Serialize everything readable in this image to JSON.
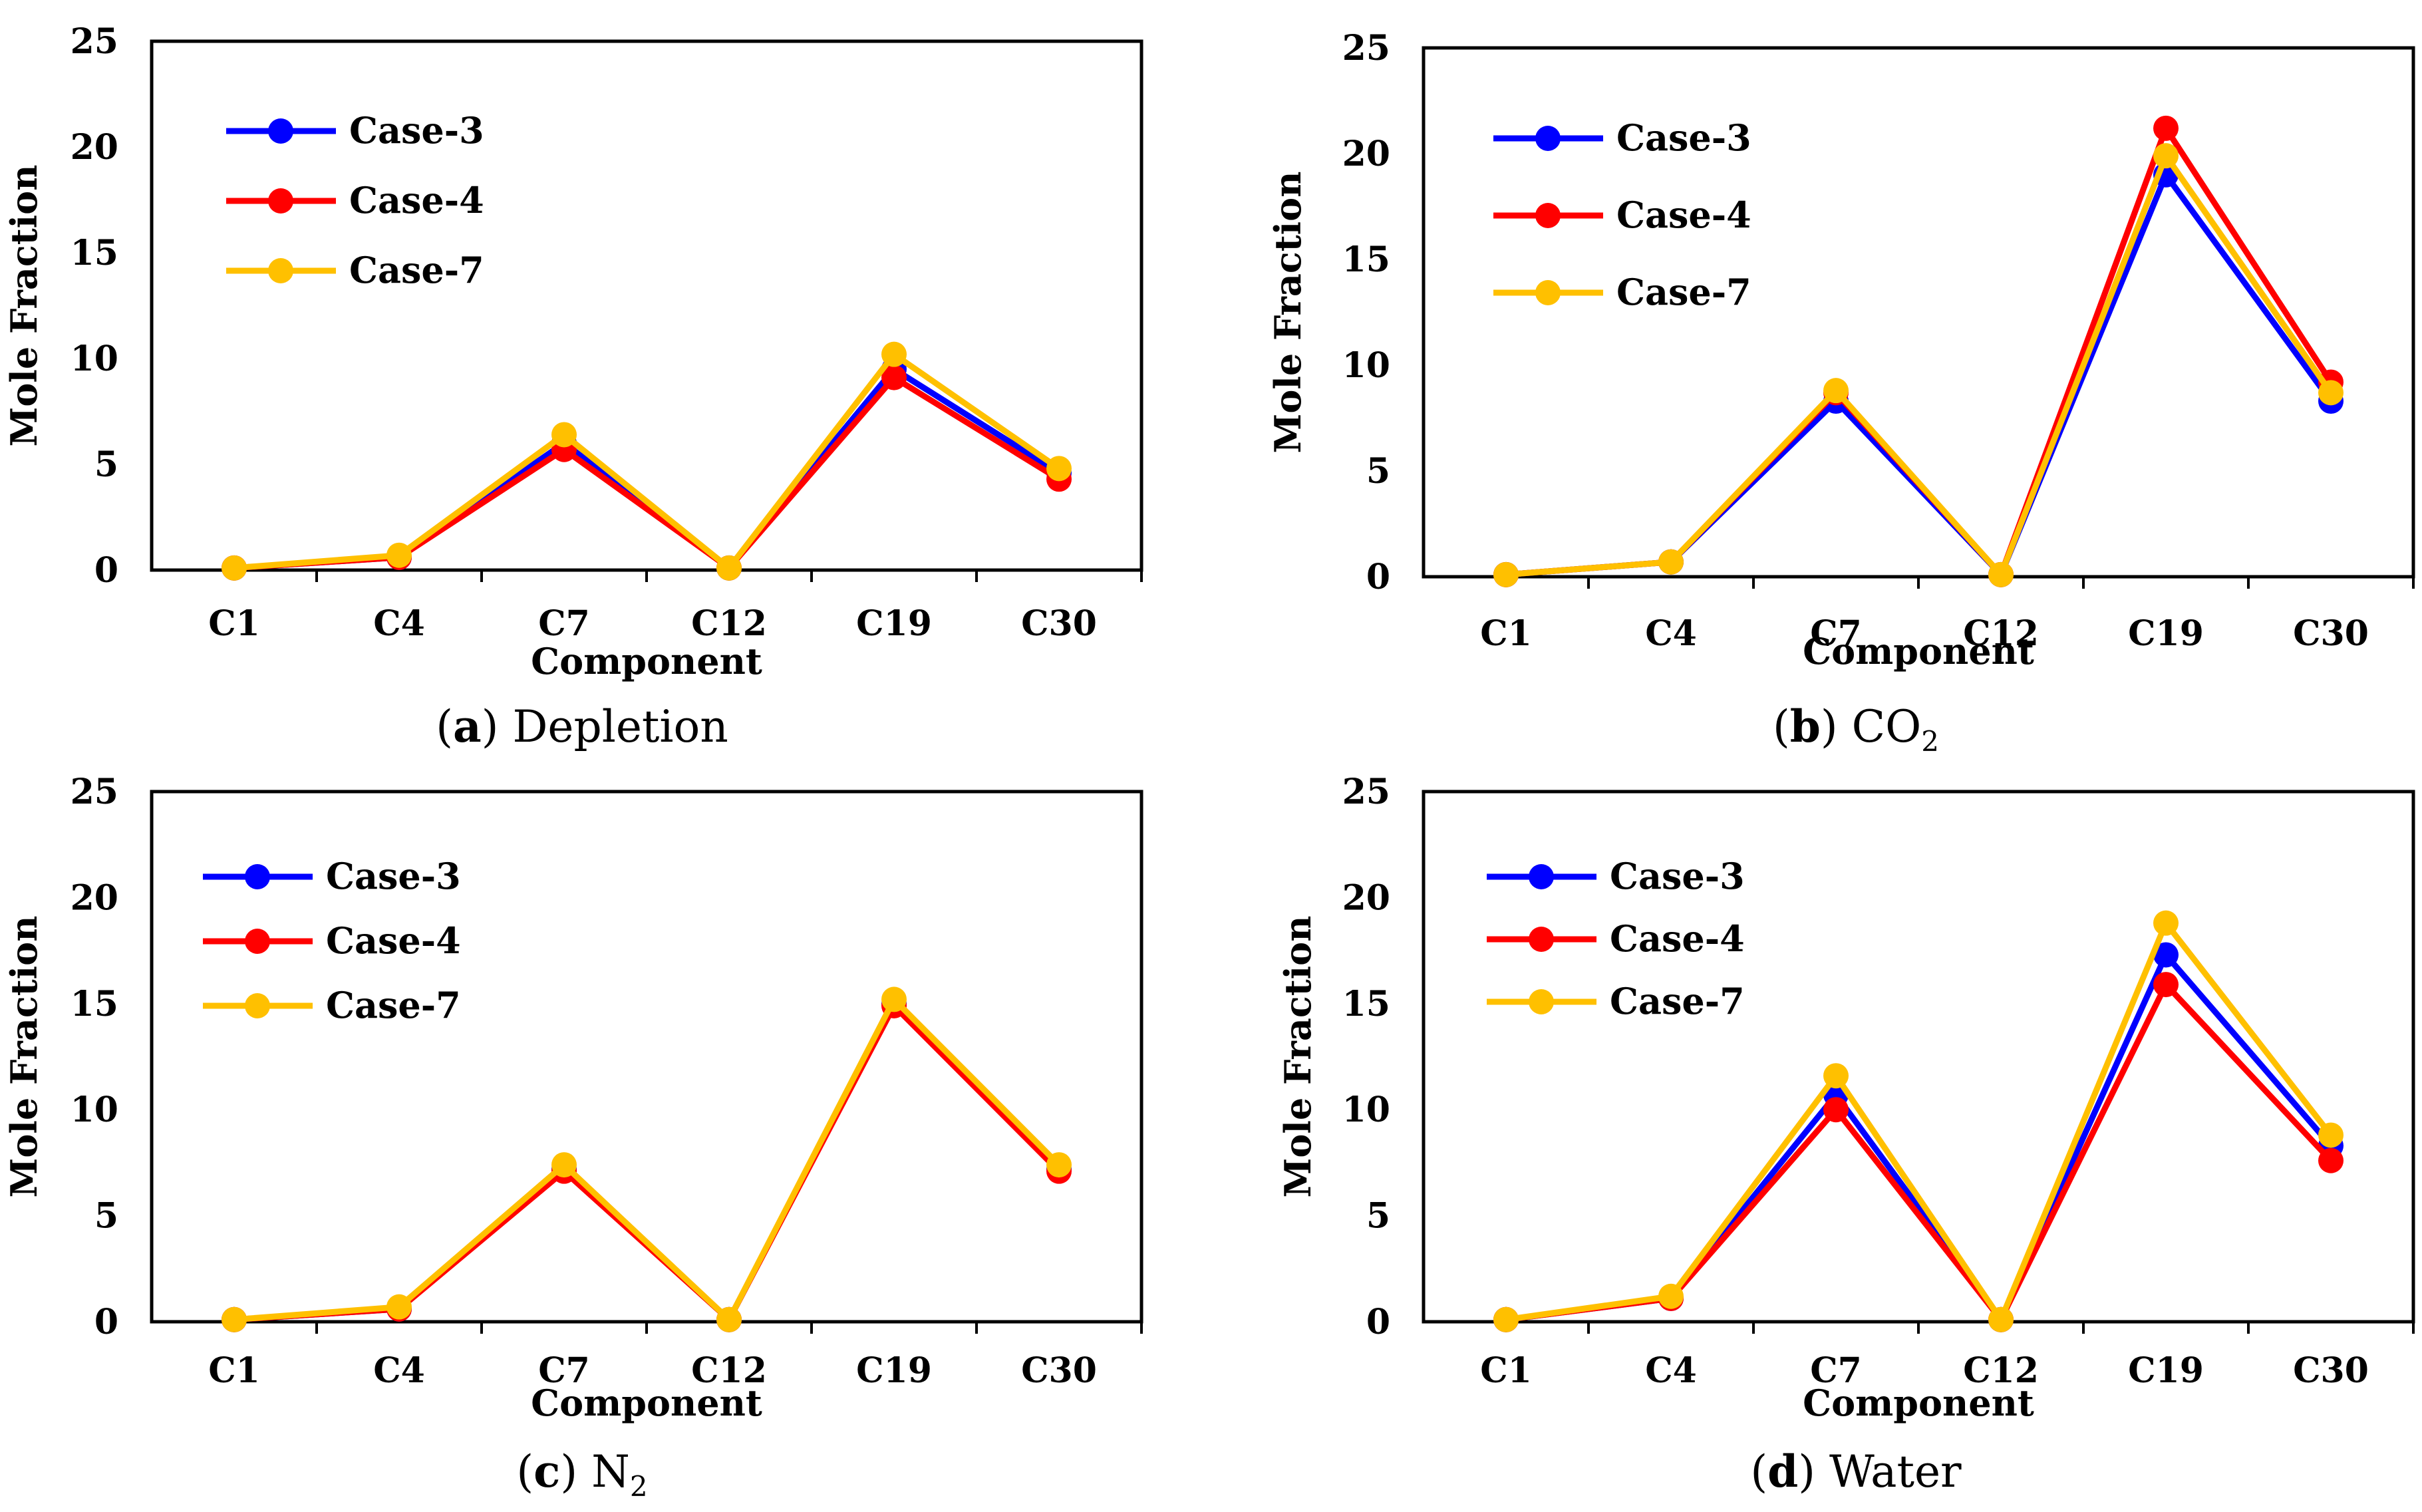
{
  "chart_data": [
    {
      "id": "a",
      "type": "line",
      "caption_letter": "a",
      "caption_text": "Depletion",
      "caption_sub": "",
      "xlabel": "Component",
      "ylabel": "Mole Fraction",
      "categories": [
        "C1",
        "C4",
        "C7",
        "C12",
        "C19",
        "C30"
      ],
      "ylim": [
        0,
        25
      ],
      "yticks": [
        0,
        5,
        10,
        15,
        20,
        25
      ],
      "legend_position": "top-left",
      "series": [
        {
          "name": "Case-3",
          "color": "#0000ff",
          "values": [
            0.1,
            0.6,
            6.0,
            0.1,
            9.5,
            4.6
          ]
        },
        {
          "name": "Case-4",
          "color": "#ff0000",
          "values": [
            0.1,
            0.6,
            5.7,
            0.1,
            9.1,
            4.3
          ]
        },
        {
          "name": "Case-7",
          "color": "#ffc000",
          "values": [
            0.1,
            0.7,
            6.4,
            0.1,
            10.2,
            4.8
          ]
        }
      ]
    },
    {
      "id": "b",
      "type": "line",
      "caption_letter": "b",
      "caption_text": "CO",
      "caption_sub": "2",
      "xlabel": "Component",
      "ylabel": "Mole Fraction",
      "categories": [
        "C1",
        "C4",
        "C7",
        "C12",
        "C19",
        "C30"
      ],
      "ylim": [
        0,
        25
      ],
      "yticks": [
        0,
        5,
        10,
        15,
        20,
        25
      ],
      "legend_position": "top-left",
      "series": [
        {
          "name": "Case-3",
          "color": "#0000ff",
          "values": [
            0.1,
            0.7,
            8.3,
            0.1,
            19.0,
            8.3
          ]
        },
        {
          "name": "Case-4",
          "color": "#ff0000",
          "values": [
            0.1,
            0.7,
            8.7,
            0.1,
            21.2,
            9.2
          ]
        },
        {
          "name": "Case-7",
          "color": "#ffc000",
          "values": [
            0.1,
            0.7,
            8.8,
            0.1,
            19.9,
            8.7
          ]
        }
      ]
    },
    {
      "id": "c",
      "type": "line",
      "caption_letter": "c",
      "caption_text": "N",
      "caption_sub": "2",
      "xlabel": "Component",
      "ylabel": "Mole Fraction",
      "categories": [
        "C1",
        "C4",
        "C7",
        "C12",
        "C19",
        "C30"
      ],
      "ylim": [
        0,
        25
      ],
      "yticks": [
        0,
        5,
        10,
        15,
        20,
        25
      ],
      "legend_position": "top-left",
      "series": [
        {
          "name": "Case-3",
          "color": "#0000ff",
          "values": [
            0.1,
            0.6,
            7.2,
            0.1,
            15.0,
            7.2
          ]
        },
        {
          "name": "Case-4",
          "color": "#ff0000",
          "values": [
            0.1,
            0.6,
            7.1,
            0.1,
            14.9,
            7.1
          ]
        },
        {
          "name": "Case-7",
          "color": "#ffc000",
          "values": [
            0.1,
            0.7,
            7.4,
            0.1,
            15.2,
            7.4
          ]
        }
      ]
    },
    {
      "id": "d",
      "type": "line",
      "caption_letter": "d",
      "caption_text": "Water",
      "caption_sub": "",
      "xlabel": "Component",
      "ylabel": "Mole Fraction",
      "categories": [
        "C1",
        "C4",
        "C7",
        "C12",
        "C19",
        "C30"
      ],
      "ylim": [
        0,
        25
      ],
      "yticks": [
        0,
        5,
        10,
        15,
        20,
        25
      ],
      "legend_position": "top-left",
      "series": [
        {
          "name": "Case-3",
          "color": "#0000ff",
          "values": [
            0.1,
            1.1,
            10.7,
            0.1,
            17.3,
            8.3
          ]
        },
        {
          "name": "Case-4",
          "color": "#ff0000",
          "values": [
            0.1,
            1.1,
            10.0,
            0.1,
            15.9,
            7.6
          ]
        },
        {
          "name": "Case-7",
          "color": "#ffc000",
          "values": [
            0.1,
            1.2,
            11.6,
            0.1,
            18.8,
            8.8
          ]
        }
      ]
    }
  ]
}
